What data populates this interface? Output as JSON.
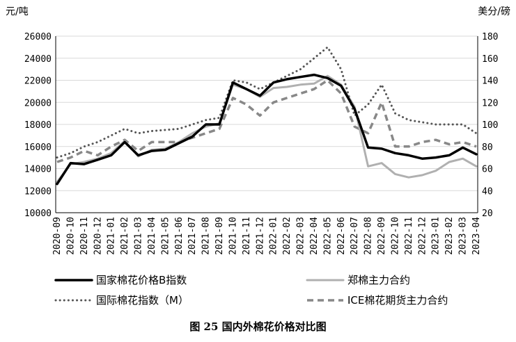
{
  "caption": "图 25   国内外棉花价格对比图",
  "chart_data": {
    "type": "line",
    "y_left_unit": "元/吨",
    "y_right_unit": "美分/磅",
    "ylim_left": [
      10000,
      26000
    ],
    "ylim_right": [
      20,
      180
    ],
    "yticks_left": [
      10000,
      12000,
      14000,
      16000,
      18000,
      20000,
      22000,
      24000,
      26000
    ],
    "yticks_right": [
      20,
      40,
      60,
      80,
      100,
      120,
      140,
      160,
      180
    ],
    "x_categories": [
      "2020-09",
      "2020-10",
      "2020-11",
      "2020-12",
      "2021-01",
      "2021-02",
      "2021-03",
      "2021-04",
      "2021-05",
      "2021-06",
      "2021-07",
      "2021-08",
      "2021-09",
      "2021-10",
      "2021-11",
      "2021-12",
      "2022-01",
      "2022-02",
      "2022-03",
      "2022-04",
      "2022-05",
      "2022-06",
      "2022-07",
      "2022-08",
      "2022-09",
      "2022-10",
      "2022-11",
      "2022-12",
      "2023-01",
      "2023-02",
      "2023-03",
      "2023-04"
    ],
    "grid": "horizontal",
    "legend_position": "bottom",
    "series": [
      {
        "name": "国家棉花价格B指数",
        "axis": "left",
        "color": "#000000",
        "style": "solid-thick",
        "values": [
          12600,
          14500,
          14400,
          14800,
          15200,
          16400,
          15200,
          15600,
          15700,
          16300,
          16900,
          18000,
          18000,
          21800,
          21200,
          20600,
          21800,
          22100,
          22300,
          22500,
          22200,
          21500,
          19400,
          15900,
          15800,
          15400,
          15200,
          14900,
          15000,
          15200,
          15900,
          15300
        ]
      },
      {
        "name": "郑棉主力合约",
        "axis": "left",
        "color": "#b0b0b0",
        "style": "solid",
        "values": [
          12800,
          14400,
          14600,
          14900,
          15400,
          16500,
          15100,
          15700,
          15800,
          16400,
          17200,
          17800,
          18100,
          21600,
          21200,
          20500,
          21300,
          21400,
          21600,
          21700,
          22400,
          21600,
          19600,
          14200,
          14500,
          13500,
          13200,
          13400,
          13800,
          14600,
          14900,
          14200
        ]
      },
      {
        "name": "国际棉花指数（M）",
        "axis": "right",
        "color": "#555555",
        "style": "dotted",
        "values": [
          70,
          74,
          80,
          84,
          90,
          96,
          92,
          94,
          95,
          96,
          100,
          104,
          106,
          140,
          138,
          132,
          138,
          144,
          150,
          160,
          170,
          150,
          108,
          118,
          136,
          110,
          104,
          102,
          100,
          100,
          100,
          92
        ]
      },
      {
        "name": "ICE棉花期货主力合约",
        "axis": "right",
        "color": "#888888",
        "style": "dashed",
        "values": [
          66,
          70,
          76,
          72,
          80,
          86,
          76,
          84,
          84,
          84,
          88,
          92,
          96,
          124,
          118,
          108,
          120,
          124,
          128,
          132,
          140,
          128,
          98,
          92,
          120,
          80,
          80,
          84,
          86,
          82,
          84,
          80
        ]
      }
    ]
  }
}
